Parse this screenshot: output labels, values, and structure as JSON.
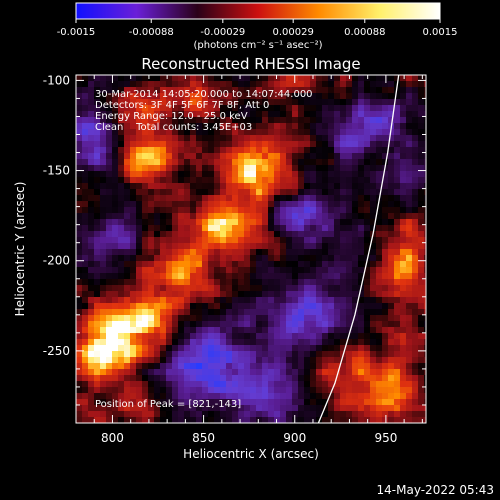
{
  "colorbar": {
    "tick_labels": [
      "-0.0015",
      "-0.00088",
      "-0.00029",
      "0.00029",
      "0.00088",
      "0.0015"
    ],
    "unit_label": "(photons cm⁻² s⁻¹ asec⁻²)",
    "range": [
      -0.0015,
      0.0015
    ],
    "colors": [
      "#1010ff",
      "#6a1fd8",
      "#2a0018",
      "#cc1010",
      "#ff8a00",
      "#fff06a",
      "#ffffff"
    ]
  },
  "chart_data": {
    "type": "heatmap",
    "title": "Reconstructed RHESSI Image",
    "xlabel": "Heliocentric X (arcsec)",
    "ylabel": "Heliocentric Y (arcsec)",
    "xlim": [
      780,
      972
    ],
    "ylim": [
      -290,
      -97
    ],
    "xticks": [
      800,
      850,
      900,
      950
    ],
    "yticks": [
      -100,
      -150,
      -200,
      -250
    ],
    "annotations": [
      "30-Mar-2014 14:05:20.000 to 14:07:44.000",
      "Detectors: 3F 4F 5F 6F 7F 8F, Att 0",
      "Energy Range: 12.0 - 25.0 keV",
      "Clean    Total counts: 3.45E+03"
    ],
    "peak_label": "Position of Peak = [821,-143]",
    "peak": [
      821,
      -143
    ],
    "limb_curve": {
      "x": [
        957,
        951,
        943,
        933,
        922,
        913
      ],
      "y": [
        -97,
        -140,
        -185,
        -230,
        -268,
        -290
      ]
    },
    "bright_regions": [
      {
        "x": 821,
        "y": -143,
        "intensity": 1.0,
        "sx": 10,
        "sy": 9
      },
      {
        "x": 808,
        "y": -118,
        "intensity": 0.6,
        "sx": 12,
        "sy": 8
      },
      {
        "x": 845,
        "y": -110,
        "intensity": 0.55,
        "sx": 14,
        "sy": 7
      },
      {
        "x": 878,
        "y": -150,
        "intensity": 0.85,
        "sx": 12,
        "sy": 12
      },
      {
        "x": 860,
        "y": -180,
        "intensity": 0.7,
        "sx": 15,
        "sy": 10
      },
      {
        "x": 840,
        "y": -205,
        "intensity": 0.6,
        "sx": 14,
        "sy": 10
      },
      {
        "x": 815,
        "y": -235,
        "intensity": 0.75,
        "sx": 15,
        "sy": 14
      },
      {
        "x": 795,
        "y": -250,
        "intensity": 0.9,
        "sx": 12,
        "sy": 11
      },
      {
        "x": 960,
        "y": -200,
        "intensity": 0.65,
        "sx": 10,
        "sy": 25
      },
      {
        "x": 935,
        "y": -265,
        "intensity": 0.55,
        "sx": 18,
        "sy": 12
      },
      {
        "x": 955,
        "y": -275,
        "intensity": 0.5,
        "sx": 12,
        "sy": 12
      },
      {
        "x": 900,
        "y": -100,
        "intensity": 0.45,
        "sx": 12,
        "sy": 6
      },
      {
        "x": 810,
        "y": -283,
        "intensity": 0.35,
        "sx": 12,
        "sy": 6
      }
    ],
    "negative_regions": [
      {
        "x": 790,
        "y": -130,
        "intensity": 0.85,
        "sx": 8,
        "sy": 12
      },
      {
        "x": 850,
        "y": -255,
        "intensity": 0.8,
        "sx": 18,
        "sy": 14
      },
      {
        "x": 905,
        "y": -230,
        "intensity": 0.7,
        "sx": 16,
        "sy": 14
      },
      {
        "x": 905,
        "y": -175,
        "intensity": 0.65,
        "sx": 14,
        "sy": 10
      },
      {
        "x": 880,
        "y": -275,
        "intensity": 0.6,
        "sx": 16,
        "sy": 10
      },
      {
        "x": 930,
        "y": -130,
        "intensity": 0.6,
        "sx": 12,
        "sy": 12
      },
      {
        "x": 800,
        "y": -190,
        "intensity": 0.55,
        "sx": 10,
        "sy": 10
      },
      {
        "x": 950,
        "y": -120,
        "intensity": 0.55,
        "sx": 10,
        "sy": 10
      },
      {
        "x": 960,
        "y": -160,
        "intensity": 0.45,
        "sx": 8,
        "sy": 12
      }
    ]
  },
  "footer": {
    "timestamp": "14-May-2022 05:43"
  }
}
